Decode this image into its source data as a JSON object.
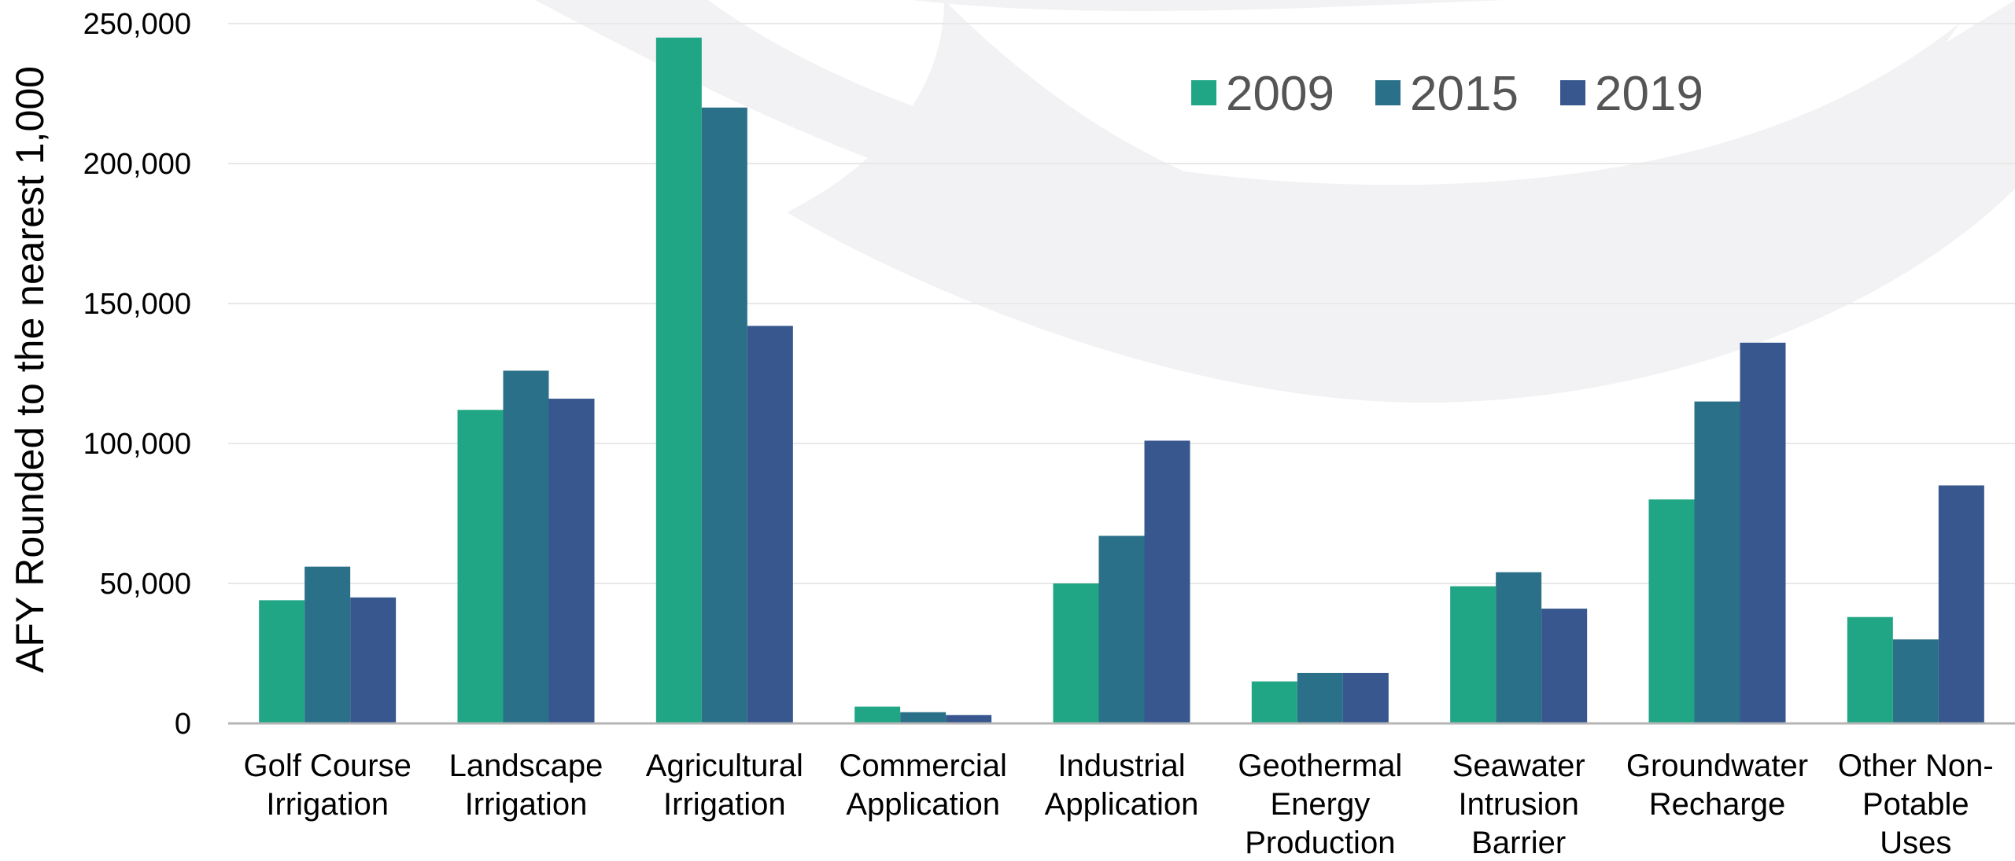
{
  "chart_data": {
    "type": "bar",
    "title": "",
    "xlabel": "",
    "ylabel": "AFY Rounded to the nearest 1,000",
    "ylim": [
      0,
      250000
    ],
    "yticks": [
      0,
      50000,
      100000,
      150000,
      200000,
      250000
    ],
    "ytick_labels": [
      "0",
      "50,000",
      "100,000",
      "150,000",
      "200,000",
      "250,000"
    ],
    "grid": true,
    "legend_position": "top-right",
    "categories": [
      [
        "Golf Course",
        "Irrigation"
      ],
      [
        "Landscape",
        "Irrigation"
      ],
      [
        "Agricultural",
        "Irrigation"
      ],
      [
        "Commercial",
        "Application"
      ],
      [
        "Industrial",
        "Application"
      ],
      [
        "Geothermal",
        "Energy",
        "Production"
      ],
      [
        "Seawater",
        "Intrusion",
        "Barrier"
      ],
      [
        "Groundwater",
        "Recharge"
      ],
      [
        "Other Non-",
        "Potable",
        "Uses"
      ]
    ],
    "series": [
      {
        "name": "2009",
        "color": "#21a685",
        "values": [
          44000,
          112000,
          245000,
          6000,
          50000,
          15000,
          49000,
          80000,
          38000
        ]
      },
      {
        "name": "2015",
        "color": "#2b7089",
        "values": [
          56000,
          126000,
          220000,
          4000,
          67000,
          18000,
          54000,
          115000,
          30000
        ]
      },
      {
        "name": "2019",
        "color": "#37578e",
        "values": [
          45000,
          116000,
          142000,
          3000,
          101000,
          18000,
          41000,
          136000,
          85000
        ]
      }
    ]
  }
}
